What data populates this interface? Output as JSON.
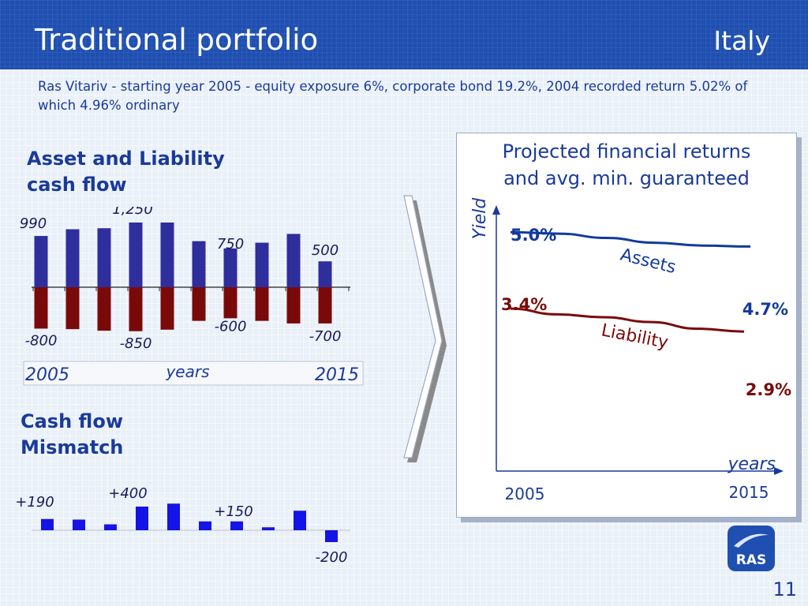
{
  "header": {
    "title": "Traditional portfolio",
    "country": "Italy"
  },
  "subtitle": "Ras Vitariv - starting year 2005 - equity exposure 6%, corporate bond 19.2%, 2004 recorded return 5.02% of which 4.96% ordinary",
  "alm": {
    "title_line1": "Asset and Liability",
    "title_line2": "cash flow"
  },
  "mismatch": {
    "title_line1": "Cash flow",
    "title_line2": "Mismatch"
  },
  "returns": {
    "title_line1": "Projected financial returns",
    "title_line2": "and avg. min. guaranteed"
  },
  "logo": "RAS",
  "page_number": "11",
  "colors": {
    "header": "#1f4fb0",
    "asset_bar": "#2e2e9c",
    "liability_bar": "#7a0a0a",
    "mismatch_bar": "#1414e6",
    "assets_line": "#123a9c",
    "liability_line": "#7a0a0a",
    "text_blue": "#1a3a9a"
  },
  "chart_data": [
    {
      "type": "bar",
      "title": "",
      "categories": [
        "",
        "",
        "",
        "",
        "",
        "",
        "",
        "",
        "",
        ""
      ],
      "series": [
        {
          "values": [
            990,
            1120,
            1140,
            1250,
            1250,
            890,
            750,
            860,
            1030,
            500
          ]
        },
        {
          "values": [
            -800,
            -810,
            -840,
            -850,
            -820,
            -650,
            -600,
            -650,
            -700,
            -700
          ]
        }
      ],
      "value_labels": [
        {
          "text": "990",
          "series": 0,
          "index": 0
        },
        {
          "text": "1,250",
          "series": 0,
          "index": 3
        },
        {
          "text": "750",
          "series": 0,
          "index": 6
        },
        {
          "text": "500",
          "series": 0,
          "index": 9
        },
        {
          "text": "-800",
          "series": 1,
          "index": 0
        },
        {
          "text": "-850",
          "series": 1,
          "index": 3
        },
        {
          "text": "-600",
          "series": 1,
          "index": 6
        },
        {
          "text": "-700",
          "series": 1,
          "index": 9
        }
      ],
      "x_start": "2005",
      "x_end": "2015",
      "xlabel": "years",
      "ylim": [
        -900,
        1300
      ]
    },
    {
      "type": "bar",
      "title": "",
      "values": [
        190,
        180,
        100,
        400,
        450,
        150,
        150,
        50,
        330,
        -200
      ],
      "value_labels": [
        {
          "text": "+190",
          "index": 0
        },
        {
          "text": "+400",
          "index": 3
        },
        {
          "text": "+150",
          "index": 6
        },
        {
          "text": "-200",
          "index": 9
        }
      ],
      "ylim": [
        -250,
        500
      ]
    },
    {
      "type": "line",
      "title": "",
      "x": [
        "2005",
        "2015"
      ],
      "xlabel": "years",
      "ylabel": "Yield",
      "series": [
        {
          "name": "Assets",
          "start": 5.0,
          "end": 4.7,
          "start_label": "5.0%",
          "end_label": "4.7%",
          "path_y": [
            5.0,
            4.97,
            4.88,
            4.78,
            4.72,
            4.7
          ]
        },
        {
          "name": "Liability",
          "start": 3.4,
          "end": 2.9,
          "start_label": "3.4%",
          "end_label": "2.9%",
          "path_y": [
            3.4,
            3.28,
            3.22,
            3.12,
            2.98,
            2.92
          ]
        }
      ],
      "ylim": [
        0,
        5.5
      ]
    }
  ]
}
